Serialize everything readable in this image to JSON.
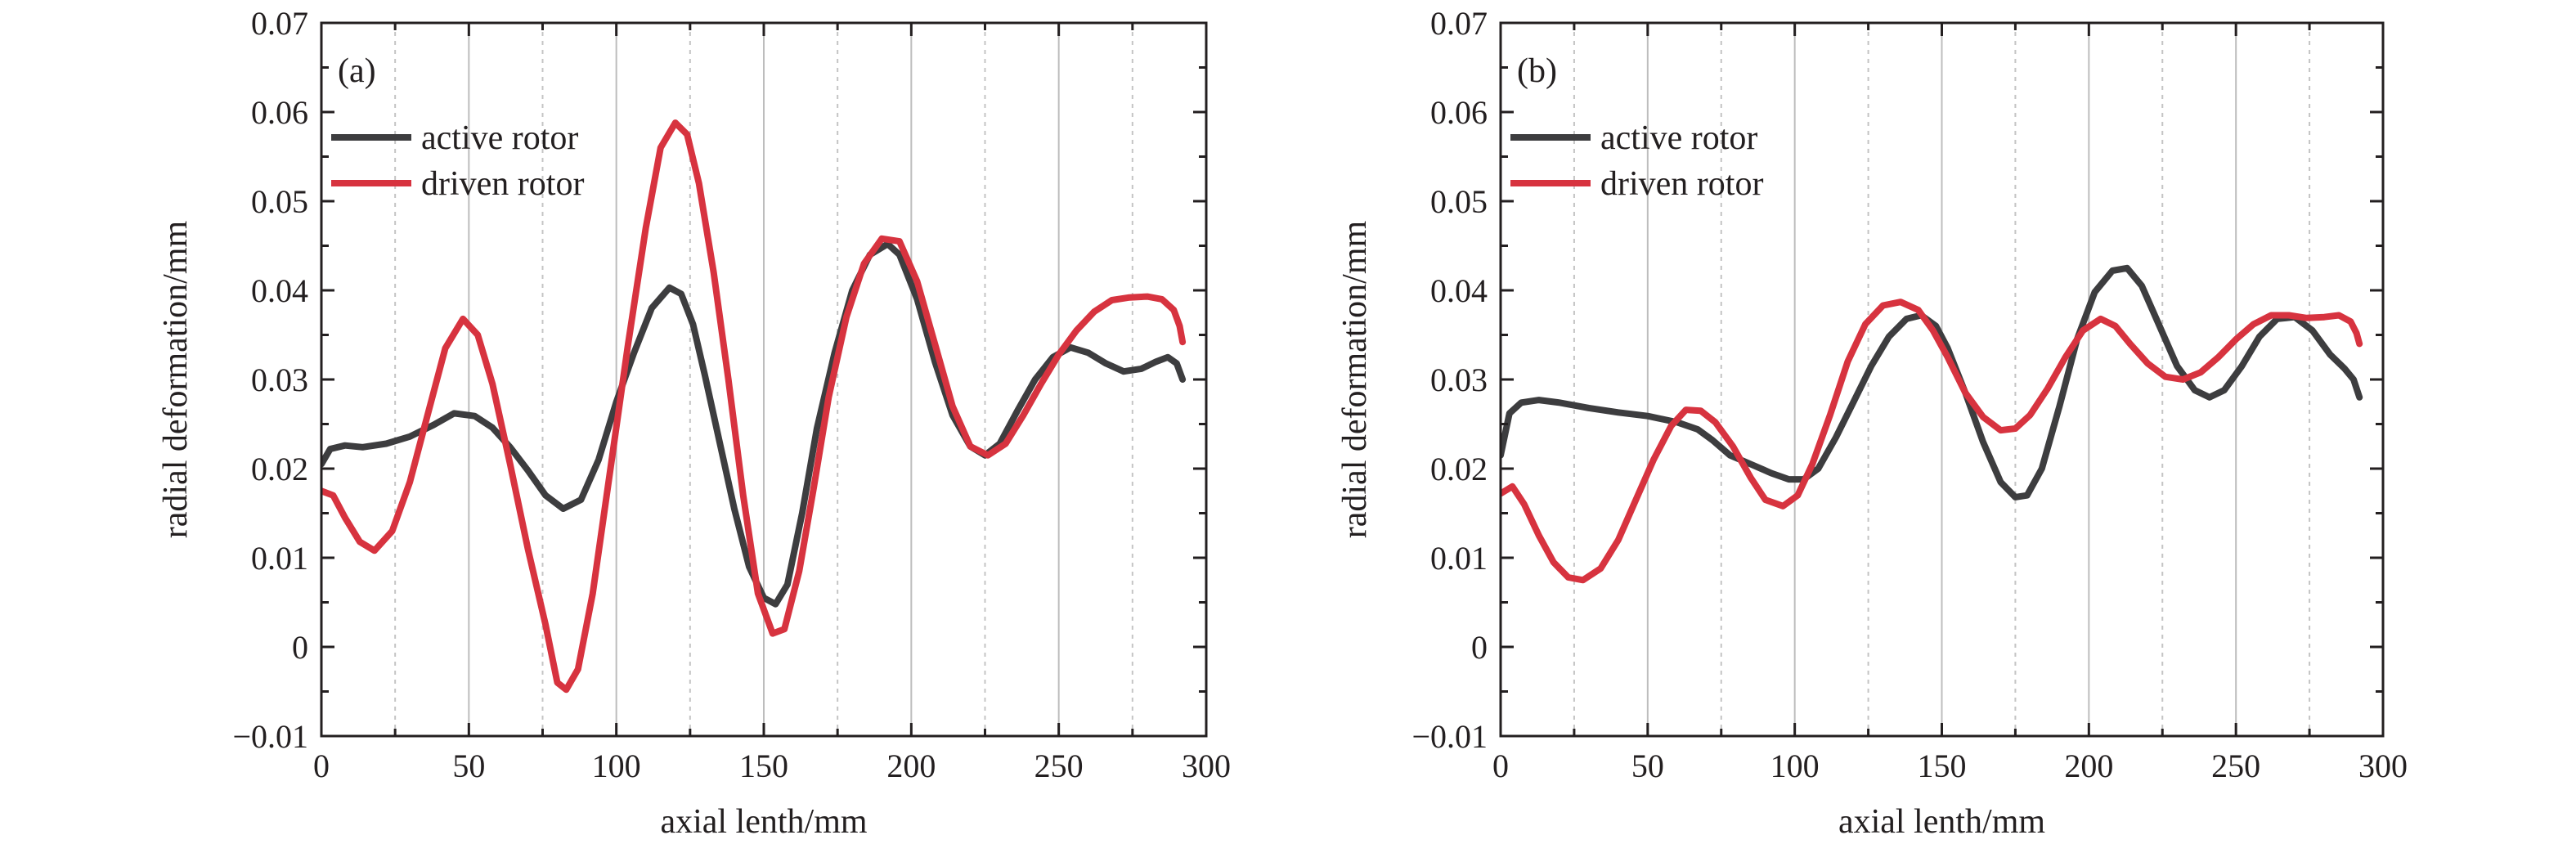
{
  "chart_data": [
    {
      "panel": "(a)",
      "type": "line",
      "xlabel": "axial lenth/mm",
      "ylabel": "radial deformation/mm",
      "xlim": [
        0,
        300
      ],
      "ylim": [
        -0.01,
        0.07
      ],
      "xticks": [
        0,
        50,
        100,
        150,
        200,
        250,
        300
      ],
      "yticks": [
        -0.01,
        0,
        0.01,
        0.02,
        0.03,
        0.04,
        0.05,
        0.06,
        0.07
      ],
      "ytick_labels": [
        "−0.01",
        "0",
        "0.01",
        "0.02",
        "0.03",
        "0.04",
        "0.05",
        "0.06",
        "0.07"
      ],
      "legend_position": "top-left",
      "grid": "vertical lines (solid at major ticks, dotted in between)",
      "series": [
        {
          "name": "active rotor",
          "color": "#3d3d3f",
          "points": [
            [
              0,
              0.0205
            ],
            [
              3,
              0.0222
            ],
            [
              8,
              0.0226
            ],
            [
              14,
              0.0224
            ],
            [
              22,
              0.0228
            ],
            [
              30,
              0.0236
            ],
            [
              38,
              0.0249
            ],
            [
              45,
              0.0262
            ],
            [
              52,
              0.0259
            ],
            [
              58,
              0.0246
            ],
            [
              64,
              0.0224
            ],
            [
              70,
              0.0198
            ],
            [
              76,
              0.017
            ],
            [
              82,
              0.0155
            ],
            [
              88,
              0.0165
            ],
            [
              94,
              0.021
            ],
            [
              100,
              0.0275
            ],
            [
              106,
              0.033
            ],
            [
              112,
              0.038
            ],
            [
              118,
              0.0403
            ],
            [
              122,
              0.0396
            ],
            [
              126,
              0.0362
            ],
            [
              130,
              0.0305
            ],
            [
              135,
              0.023
            ],
            [
              140,
              0.0155
            ],
            [
              145,
              0.009
            ],
            [
              150,
              0.0055
            ],
            [
              154,
              0.0048
            ],
            [
              158,
              0.007
            ],
            [
              163,
              0.015
            ],
            [
              168,
              0.0245
            ],
            [
              174,
              0.033
            ],
            [
              180,
              0.04
            ],
            [
              186,
              0.044
            ],
            [
              192,
              0.0452
            ],
            [
              196,
              0.044
            ],
            [
              202,
              0.039
            ],
            [
              208,
              0.032
            ],
            [
              214,
              0.026
            ],
            [
              220,
              0.0225
            ],
            [
              225,
              0.0215
            ],
            [
              230,
              0.0228
            ],
            [
              236,
              0.0265
            ],
            [
              242,
              0.03
            ],
            [
              248,
              0.0325
            ],
            [
              254,
              0.0336
            ],
            [
              260,
              0.033
            ],
            [
              266,
              0.0318
            ],
            [
              272,
              0.0309
            ],
            [
              278,
              0.0312
            ],
            [
              283,
              0.032
            ],
            [
              287,
              0.0325
            ],
            [
              290,
              0.0318
            ],
            [
              292,
              0.03
            ]
          ]
        },
        {
          "name": "driven rotor",
          "color": "#d7333f",
          "points": [
            [
              0,
              0.0175
            ],
            [
              4,
              0.017
            ],
            [
              8,
              0.0145
            ],
            [
              13,
              0.0118
            ],
            [
              18,
              0.0108
            ],
            [
              24,
              0.013
            ],
            [
              30,
              0.0185
            ],
            [
              36,
              0.026
            ],
            [
              42,
              0.0335
            ],
            [
              48,
              0.0368
            ],
            [
              53,
              0.035
            ],
            [
              58,
              0.0295
            ],
            [
              64,
              0.0205
            ],
            [
              70,
              0.011
            ],
            [
              76,
              0.0025
            ],
            [
              80,
              -0.004
            ],
            [
              83,
              -0.0048
            ],
            [
              87,
              -0.0025
            ],
            [
              92,
              0.006
            ],
            [
              98,
              0.02
            ],
            [
              104,
              0.034
            ],
            [
              110,
              0.047
            ],
            [
              115,
              0.056
            ],
            [
              120,
              0.0588
            ],
            [
              124,
              0.0575
            ],
            [
              128,
              0.052
            ],
            [
              133,
              0.042
            ],
            [
              138,
              0.03
            ],
            [
              143,
              0.017
            ],
            [
              148,
              0.006
            ],
            [
              153,
              0.0015
            ],
            [
              157,
              0.002
            ],
            [
              162,
              0.0085
            ],
            [
              167,
              0.018
            ],
            [
              172,
              0.028
            ],
            [
              178,
              0.037
            ],
            [
              184,
              0.043
            ],
            [
              190,
              0.0458
            ],
            [
              196,
              0.0455
            ],
            [
              202,
              0.041
            ],
            [
              208,
              0.034
            ],
            [
              214,
              0.027
            ],
            [
              220,
              0.0225
            ],
            [
              226,
              0.0215
            ],
            [
              232,
              0.0228
            ],
            [
              238,
              0.026
            ],
            [
              244,
              0.0295
            ],
            [
              250,
              0.0328
            ],
            [
              256,
              0.0355
            ],
            [
              262,
              0.0376
            ],
            [
              268,
              0.0389
            ],
            [
              274,
              0.0392
            ],
            [
              280,
              0.0393
            ],
            [
              285,
              0.039
            ],
            [
              289,
              0.0378
            ],
            [
              291,
              0.036
            ],
            [
              292,
              0.0342
            ]
          ]
        }
      ]
    },
    {
      "panel": "(b)",
      "type": "line",
      "xlabel": "axial lenth/mm",
      "ylabel": "radial deformation/mm",
      "xlim": [
        0,
        300
      ],
      "ylim": [
        -0.01,
        0.07
      ],
      "xticks": [
        0,
        50,
        100,
        150,
        200,
        250,
        300
      ],
      "yticks": [
        -0.01,
        0,
        0.01,
        0.02,
        0.03,
        0.04,
        0.05,
        0.06,
        0.07
      ],
      "ytick_labels": [
        "−0.01",
        "0",
        "0.01",
        "0.02",
        "0.03",
        "0.04",
        "0.05",
        "0.06",
        "0.07"
      ],
      "legend_position": "top-left",
      "grid": "vertical lines (solid at major ticks, dotted in between)",
      "series": [
        {
          "name": "active rotor",
          "color": "#3d3d3f",
          "points": [
            [
              0,
              0.0215
            ],
            [
              3,
              0.0262
            ],
            [
              7,
              0.0274
            ],
            [
              13,
              0.0277
            ],
            [
              20,
              0.0274
            ],
            [
              30,
              0.0268
            ],
            [
              40,
              0.0263
            ],
            [
              50,
              0.0259
            ],
            [
              60,
              0.0252
            ],
            [
              67,
              0.0244
            ],
            [
              72,
              0.0232
            ],
            [
              78,
              0.0215
            ],
            [
              85,
              0.0205
            ],
            [
              92,
              0.0195
            ],
            [
              98,
              0.0188
            ],
            [
              103,
              0.0188
            ],
            [
              108,
              0.02
            ],
            [
              114,
              0.0235
            ],
            [
              120,
              0.0275
            ],
            [
              126,
              0.0315
            ],
            [
              132,
              0.0348
            ],
            [
              138,
              0.0368
            ],
            [
              143,
              0.0372
            ],
            [
              148,
              0.036
            ],
            [
              152,
              0.0335
            ],
            [
              158,
              0.0285
            ],
            [
              164,
              0.023
            ],
            [
              170,
              0.0185
            ],
            [
              175,
              0.0168
            ],
            [
              179,
              0.017
            ],
            [
              184,
              0.02
            ],
            [
              190,
              0.027
            ],
            [
              196,
              0.0345
            ],
            [
              202,
              0.0398
            ],
            [
              208,
              0.0422
            ],
            [
              213,
              0.0425
            ],
            [
              218,
              0.0405
            ],
            [
              224,
              0.036
            ],
            [
              230,
              0.0315
            ],
            [
              236,
              0.0288
            ],
            [
              241,
              0.028
            ],
            [
              246,
              0.0288
            ],
            [
              252,
              0.0315
            ],
            [
              258,
              0.0348
            ],
            [
              264,
              0.0368
            ],
            [
              270,
              0.037
            ],
            [
              276,
              0.0355
            ],
            [
              282,
              0.0328
            ],
            [
              287,
              0.0312
            ],
            [
              290,
              0.03
            ],
            [
              292,
              0.028
            ]
          ]
        },
        {
          "name": "driven rotor",
          "color": "#d7333f",
          "points": [
            [
              0,
              0.0172
            ],
            [
              4,
              0.018
            ],
            [
              8,
              0.016
            ],
            [
              13,
              0.0125
            ],
            [
              18,
              0.0095
            ],
            [
              23,
              0.0078
            ],
            [
              28,
              0.0075
            ],
            [
              34,
              0.0088
            ],
            [
              40,
              0.012
            ],
            [
              46,
              0.0165
            ],
            [
              52,
              0.021
            ],
            [
              58,
              0.0248
            ],
            [
              63,
              0.0266
            ],
            [
              68,
              0.0265
            ],
            [
              73,
              0.0252
            ],
            [
              79,
              0.0225
            ],
            [
              85,
              0.019
            ],
            [
              90,
              0.0165
            ],
            [
              96,
              0.0158
            ],
            [
              101,
              0.017
            ],
            [
              106,
              0.0205
            ],
            [
              112,
              0.026
            ],
            [
              118,
              0.032
            ],
            [
              124,
              0.0362
            ],
            [
              130,
              0.0383
            ],
            [
              136,
              0.0387
            ],
            [
              142,
              0.0378
            ],
            [
              147,
              0.0355
            ],
            [
              152,
              0.0325
            ],
            [
              158,
              0.0285
            ],
            [
              164,
              0.0258
            ],
            [
              170,
              0.0243
            ],
            [
              175,
              0.0245
            ],
            [
              180,
              0.026
            ],
            [
              186,
              0.029
            ],
            [
              192,
              0.0325
            ],
            [
              198,
              0.0355
            ],
            [
              204,
              0.0368
            ],
            [
              209,
              0.036
            ],
            [
              214,
              0.034
            ],
            [
              220,
              0.0318
            ],
            [
              226,
              0.0303
            ],
            [
              232,
              0.03
            ],
            [
              238,
              0.0308
            ],
            [
              244,
              0.0325
            ],
            [
              250,
              0.0345
            ],
            [
              256,
              0.0362
            ],
            [
              262,
              0.0372
            ],
            [
              268,
              0.0372
            ],
            [
              274,
              0.0369
            ],
            [
              280,
              0.037
            ],
            [
              285,
              0.0372
            ],
            [
              289,
              0.0365
            ],
            [
              291,
              0.0352
            ],
            [
              292,
              0.034
            ]
          ]
        }
      ]
    }
  ]
}
